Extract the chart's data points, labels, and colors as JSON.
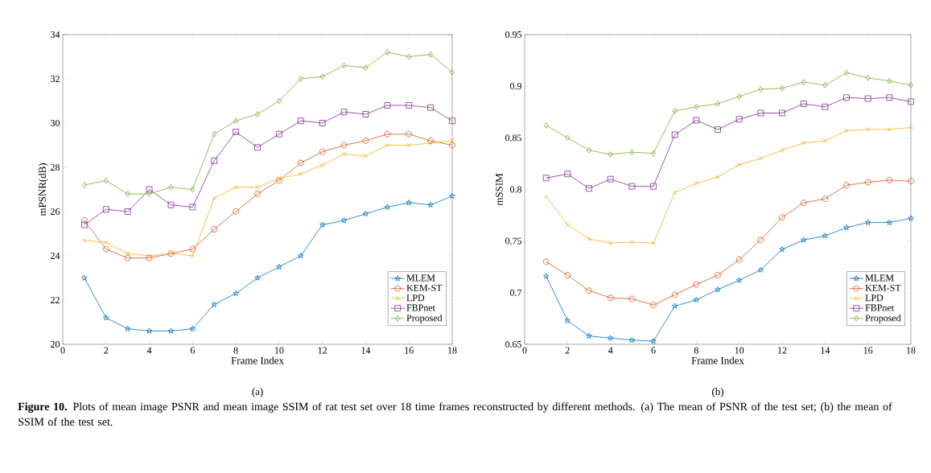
{
  "chart_data": [
    {
      "type": "line",
      "xlabel": "Frame Index",
      "ylabel": "mPSNR(dB)",
      "x": [
        1,
        2,
        3,
        4,
        5,
        6,
        7,
        8,
        9,
        10,
        11,
        12,
        13,
        14,
        15,
        16,
        17,
        18
      ],
      "xlim": [
        0,
        18
      ],
      "xticks": [
        0,
        2,
        4,
        6,
        8,
        10,
        12,
        14,
        16,
        18
      ],
      "ylim": [
        20,
        34
      ],
      "yticks": [
        20,
        22,
        24,
        26,
        28,
        30,
        32,
        34
      ],
      "grid": false,
      "legend": "bottom right",
      "series": [
        {
          "name": "MLEM",
          "color": "#0072bd",
          "marker": "star",
          "values": [
            23.0,
            21.2,
            20.7,
            20.6,
            20.6,
            20.7,
            21.8,
            22.3,
            23.0,
            23.5,
            24.0,
            25.4,
            25.6,
            25.9,
            26.2,
            26.4,
            26.3,
            26.7
          ]
        },
        {
          "name": "KEM-ST",
          "color": "#d95319",
          "marker": "circle",
          "values": [
            25.6,
            24.3,
            23.9,
            23.9,
            24.1,
            24.3,
            25.2,
            26.0,
            26.8,
            27.4,
            28.2,
            28.7,
            29.0,
            29.2,
            29.5,
            29.5,
            29.2,
            29.0
          ]
        },
        {
          "name": "LPD",
          "color": "#edb120",
          "marker": "cross",
          "values": [
            24.7,
            24.6,
            24.1,
            24.0,
            24.1,
            24.0,
            26.6,
            27.1,
            27.1,
            27.5,
            27.7,
            28.1,
            28.6,
            28.5,
            29.0,
            29.0,
            29.1,
            29.2
          ]
        },
        {
          "name": "FBPnet",
          "color": "#7e2f8e",
          "marker": "square",
          "values": [
            25.4,
            26.1,
            26.0,
            27.0,
            26.3,
            26.2,
            28.3,
            29.6,
            28.9,
            29.5,
            30.1,
            30.0,
            30.5,
            30.4,
            30.8,
            30.8,
            30.7,
            30.1
          ]
        },
        {
          "name": "Proposed",
          "color": "#77ac30",
          "marker": "diamond",
          "values": [
            27.2,
            27.4,
            26.8,
            26.8,
            27.1,
            27.0,
            29.5,
            30.1,
            30.4,
            31.0,
            32.0,
            32.1,
            32.6,
            32.5,
            33.2,
            33.0,
            33.1,
            32.3
          ]
        }
      ],
      "annotations": [
        "(a)",
        "**Figure 10.** Plots of mean image PSNR and mean image SSIM of rat test set over 18 time frames reconstructed by different methods. (a) The mean of PSNR of the test set; (b) the mean of SSIM of the test set."
      ]
    },
    {
      "type": "line",
      "xlabel": "Frame Index",
      "ylabel": "mSSIM",
      "x": [
        1,
        2,
        3,
        4,
        5,
        6,
        7,
        8,
        9,
        10,
        11,
        12,
        13,
        14,
        15,
        16,
        17,
        18
      ],
      "xlim": [
        0,
        18
      ],
      "xticks": [
        0,
        2,
        4,
        6,
        8,
        10,
        12,
        14,
        16,
        18
      ],
      "ylim": [
        0.65,
        0.95
      ],
      "yticks": [
        0.65,
        0.7,
        0.75,
        0.8,
        0.85,
        0.9,
        0.95
      ],
      "grid": false,
      "legend": "bottom right",
      "series": [
        {
          "name": "MLEM",
          "color": "#0072bd",
          "marker": "star",
          "values": [
            0.716,
            0.673,
            0.658,
            0.656,
            0.654,
            0.653,
            0.687,
            0.693,
            0.703,
            0.712,
            0.722,
            0.742,
            0.751,
            0.755,
            0.763,
            0.768,
            0.768,
            0.772
          ]
        },
        {
          "name": "KEM-ST",
          "color": "#d95319",
          "marker": "circle",
          "values": [
            0.73,
            0.717,
            0.702,
            0.695,
            0.694,
            0.688,
            0.698,
            0.708,
            0.717,
            0.732,
            0.751,
            0.773,
            0.787,
            0.791,
            0.804,
            0.807,
            0.809,
            0.808
          ]
        },
        {
          "name": "LPD",
          "color": "#edb120",
          "marker": "cross",
          "values": [
            0.793,
            0.766,
            0.752,
            0.748,
            0.749,
            0.748,
            0.797,
            0.806,
            0.812,
            0.824,
            0.83,
            0.838,
            0.845,
            0.847,
            0.857,
            0.858,
            0.858,
            0.86
          ]
        },
        {
          "name": "FBPnet",
          "color": "#7e2f8e",
          "marker": "square",
          "values": [
            0.811,
            0.815,
            0.801,
            0.81,
            0.803,
            0.803,
            0.853,
            0.867,
            0.858,
            0.868,
            0.874,
            0.874,
            0.883,
            0.88,
            0.889,
            0.888,
            0.889,
            0.885
          ]
        },
        {
          "name": "Proposed",
          "color": "#77ac30",
          "marker": "diamond",
          "values": [
            0.862,
            0.85,
            0.838,
            0.834,
            0.836,
            0.835,
            0.876,
            0.88,
            0.883,
            0.89,
            0.897,
            0.898,
            0.904,
            0.901,
            0.913,
            0.908,
            0.905,
            0.901
          ]
        }
      ],
      "annotations": [
        "(b)"
      ]
    }
  ]
}
